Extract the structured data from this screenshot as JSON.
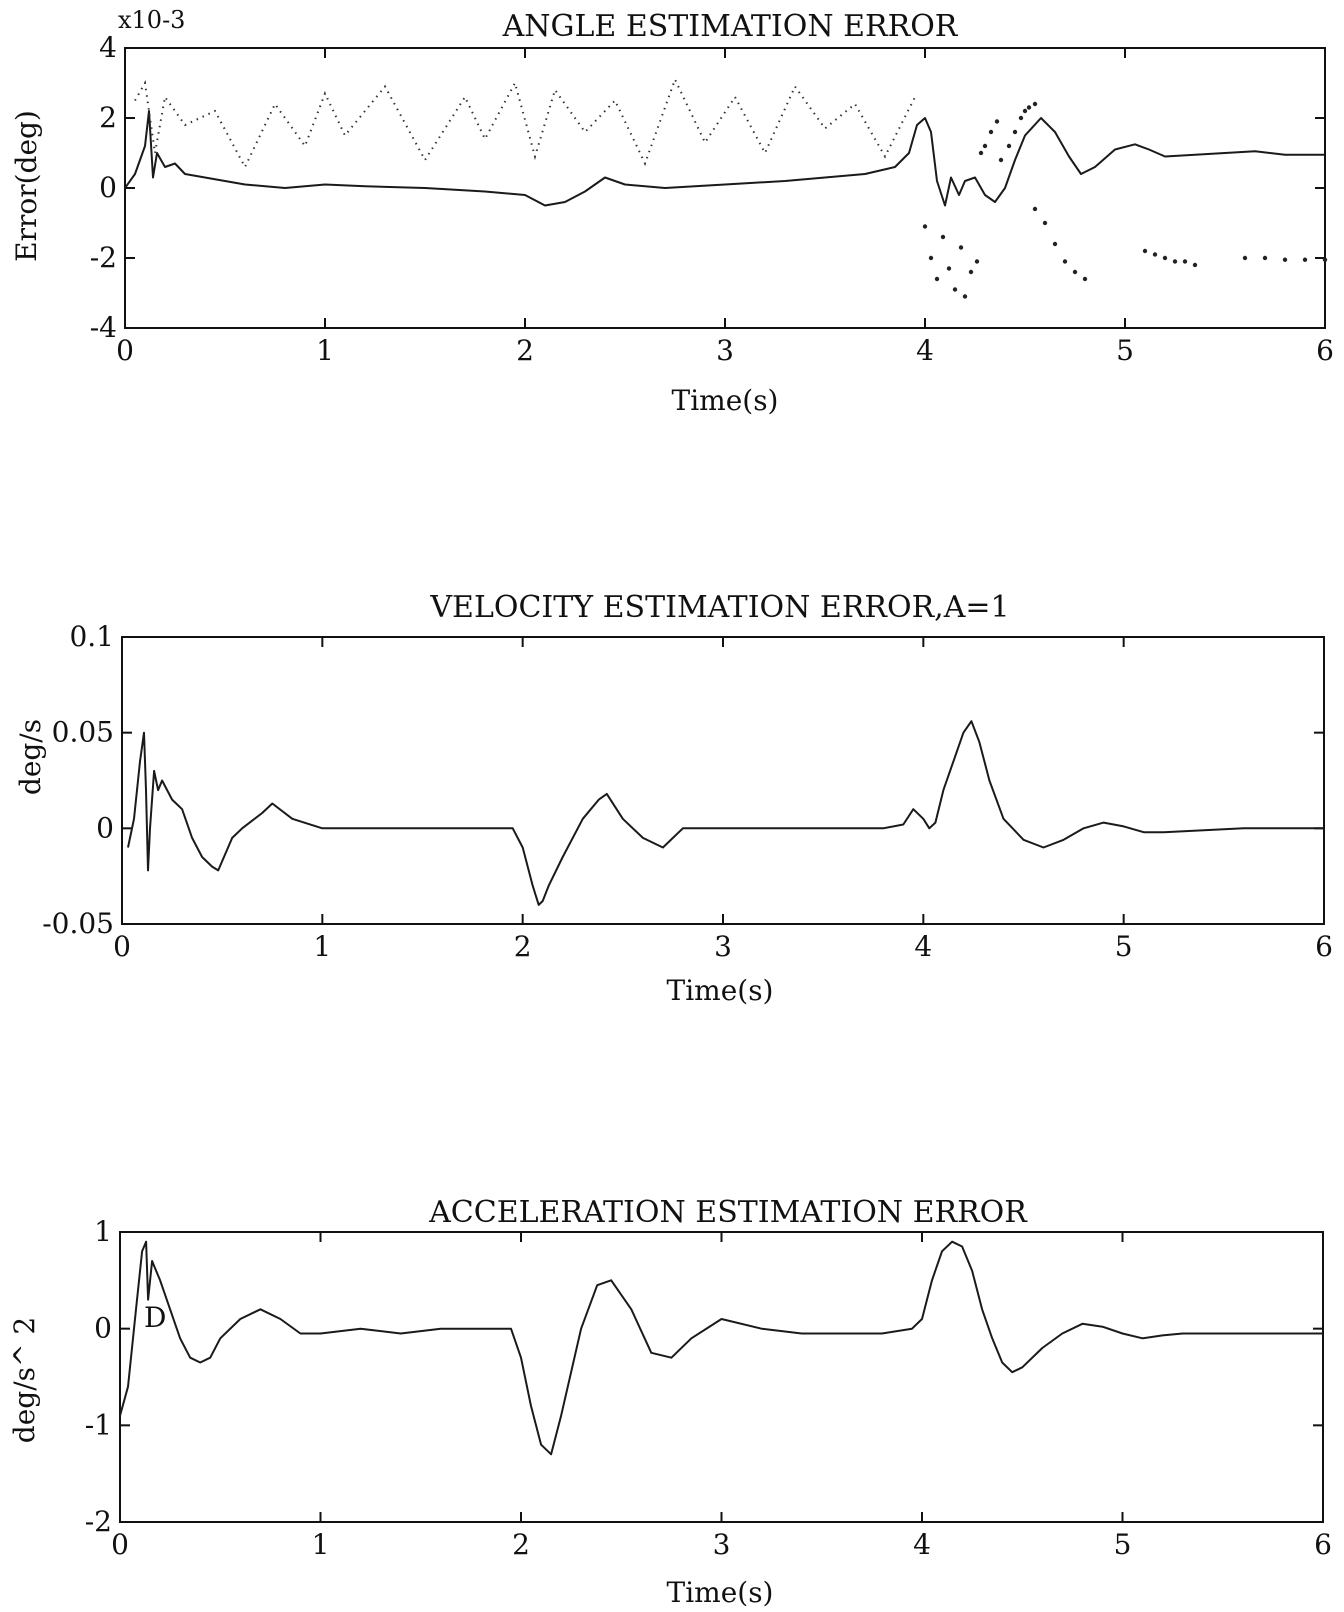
{
  "chart_data": [
    {
      "type": "line",
      "title": "ANGLE ESTIMATION ERROR",
      "xlabel": "Time(s)",
      "ylabel": "Error(deg)",
      "y_multiplier": "x10-3",
      "xlim": [
        0,
        6
      ],
      "ylim": [
        -4,
        4
      ],
      "xticks": [
        0,
        1,
        2,
        3,
        4,
        5,
        6
      ],
      "yticks": [
        -4,
        -2,
        0,
        2,
        4
      ],
      "grid": false,
      "series": [
        {
          "style": "solid",
          "x": [
            0,
            0.05,
            0.1,
            0.12,
            0.14,
            0.16,
            0.2,
            0.25,
            0.3,
            0.4,
            0.5,
            0.6,
            0.8,
            1.0,
            1.2,
            1.5,
            1.8,
            2.0,
            2.1,
            2.2,
            2.3,
            2.4,
            2.5,
            2.7,
            3.0,
            3.3,
            3.5,
            3.7,
            3.85,
            3.92,
            3.96,
            4.0,
            4.03,
            4.06,
            4.1,
            4.13,
            4.17,
            4.2,
            4.25,
            4.3,
            4.35,
            4.4,
            4.45,
            4.5,
            4.58,
            4.65,
            4.72,
            4.78,
            4.85,
            4.95,
            5.05,
            5.12,
            5.2,
            5.35,
            5.5,
            5.65,
            5.8,
            6.0
          ],
          "y": [
            0,
            0.4,
            1.2,
            2.2,
            0.3,
            1.0,
            0.6,
            0.7,
            0.4,
            0.3,
            0.2,
            0.1,
            0.0,
            0.1,
            0.05,
            0.0,
            -0.1,
            -0.2,
            -0.5,
            -0.4,
            -0.1,
            0.3,
            0.1,
            0.0,
            0.1,
            0.2,
            0.3,
            0.4,
            0.6,
            1.0,
            1.8,
            2.0,
            1.6,
            0.2,
            -0.5,
            0.3,
            -0.2,
            0.2,
            0.3,
            -0.2,
            -0.4,
            0.0,
            0.8,
            1.5,
            2.0,
            1.6,
            0.9,
            0.4,
            0.6,
            1.1,
            1.25,
            1.1,
            0.9,
            0.95,
            1.0,
            1.05,
            0.95,
            0.95
          ]
        },
        {
          "style": "dotted",
          "x": [
            0.05,
            0.1,
            0.15,
            0.2,
            0.3,
            0.45,
            0.6,
            0.75,
            0.9,
            1.0,
            1.1,
            1.3,
            1.5,
            1.7,
            1.8,
            1.95,
            2.05,
            2.15,
            2.3,
            2.45,
            2.6,
            2.75,
            2.9,
            3.05,
            3.2,
            3.35,
            3.5,
            3.65,
            3.8,
            3.95
          ],
          "y": [
            2.5,
            3.0,
            1.0,
            2.6,
            1.8,
            2.2,
            0.6,
            2.4,
            1.2,
            2.7,
            1.5,
            2.9,
            0.8,
            2.6,
            1.4,
            3.0,
            0.9,
            2.8,
            1.6,
            2.5,
            0.7,
            3.1,
            1.3,
            2.6,
            1.0,
            2.9,
            1.7,
            2.4,
            0.9,
            2.6
          ]
        },
        {
          "style": "dots",
          "x": [
            4.28,
            4.3,
            4.33,
            4.36,
            4.38,
            4.42,
            4.45,
            4.48,
            4.5,
            4.52,
            4.55
          ],
          "y": [
            1.0,
            1.2,
            1.6,
            1.9,
            0.8,
            1.2,
            1.6,
            2.0,
            2.2,
            2.3,
            2.4
          ]
        },
        {
          "style": "dots",
          "x": [
            4.0,
            4.03,
            4.06,
            4.09,
            4.12,
            4.15,
            4.18,
            4.2,
            4.23,
            4.26
          ],
          "y": [
            -1.1,
            -2.0,
            -2.6,
            -1.4,
            -2.3,
            -2.9,
            -1.7,
            -3.1,
            -2.4,
            -2.1
          ]
        },
        {
          "style": "dots",
          "x": [
            4.55,
            4.6,
            4.65,
            4.7,
            4.75,
            4.8
          ],
          "y": [
            -0.6,
            -1.0,
            -1.6,
            -2.1,
            -2.4,
            -2.6
          ]
        },
        {
          "style": "dots",
          "x": [
            5.1,
            5.15,
            5.2,
            5.25,
            5.3,
            5.35
          ],
          "y": [
            -1.8,
            -1.9,
            -2.0,
            -2.1,
            -2.1,
            -2.2
          ]
        },
        {
          "style": "dots",
          "x": [
            5.6,
            5.7,
            5.8,
            5.9,
            6.0
          ],
          "y": [
            -2.0,
            -2.0,
            -2.05,
            -2.05,
            -2.05
          ]
        }
      ]
    },
    {
      "type": "line",
      "title": "VELOCITY ESTIMATION ERROR,A=1",
      "xlabel": "Time(s)",
      "ylabel": "deg/s",
      "xlim": [
        0,
        6
      ],
      "ylim": [
        -0.05,
        0.1
      ],
      "xticks": [
        0,
        1,
        2,
        3,
        4,
        5,
        6
      ],
      "xtick_labels": [
        "0",
        "1",
        "2",
        "3",
        "4",
        "5",
        "6"
      ],
      "yticks": [
        -0.05,
        0,
        0.05,
        0.1
      ],
      "ytick_labels": [
        "-0.05",
        "0",
        "0.05",
        "0.1"
      ],
      "grid": false,
      "series": [
        {
          "style": "solid",
          "x": [
            0.03,
            0.06,
            0.09,
            0.11,
            0.12,
            0.13,
            0.14,
            0.16,
            0.18,
            0.2,
            0.25,
            0.3,
            0.35,
            0.4,
            0.45,
            0.48,
            0.55,
            0.6,
            0.7,
            0.75,
            0.85,
            1.0,
            1.2,
            1.4,
            1.6,
            1.8,
            1.95,
            2.0,
            2.05,
            2.08,
            2.1,
            2.13,
            2.2,
            2.3,
            2.38,
            2.42,
            2.5,
            2.6,
            2.7,
            2.8,
            3.0,
            3.2,
            3.4,
            3.6,
            3.8,
            3.9,
            3.95,
            4.0,
            4.03,
            4.06,
            4.1,
            4.15,
            4.2,
            4.24,
            4.28,
            4.33,
            4.4,
            4.5,
            4.6,
            4.7,
            4.8,
            4.9,
            5.0,
            5.1,
            5.2,
            5.4,
            5.6,
            5.8,
            6.0
          ],
          "y": [
            -0.01,
            0.005,
            0.035,
            0.05,
            0.02,
            -0.022,
            0.0,
            0.03,
            0.02,
            0.025,
            0.015,
            0.01,
            -0.005,
            -0.015,
            -0.02,
            -0.022,
            -0.005,
            0.0,
            0.008,
            0.013,
            0.005,
            0.0,
            0.0,
            0.0,
            0.0,
            0.0,
            0.0,
            -0.01,
            -0.03,
            -0.04,
            -0.038,
            -0.03,
            -0.015,
            0.005,
            0.015,
            0.018,
            0.005,
            -0.005,
            -0.01,
            0.0,
            0.0,
            0.0,
            0.0,
            0.0,
            0.0,
            0.002,
            0.01,
            0.005,
            0.0,
            0.003,
            0.02,
            0.035,
            0.05,
            0.056,
            0.045,
            0.025,
            0.005,
            -0.006,
            -0.01,
            -0.006,
            0.0,
            0.003,
            0.001,
            -0.002,
            -0.002,
            -0.001,
            0.0,
            0.0,
            0.0
          ]
        }
      ]
    },
    {
      "type": "line",
      "title": "ACCELERATION ESTIMATION ERROR",
      "xlabel": "Time(s)",
      "ylabel": "deg/s^ 2",
      "annotation": "D",
      "xlim": [
        0,
        6
      ],
      "ylim": [
        -2,
        1
      ],
      "xticks": [
        0,
        1,
        2,
        3,
        4,
        5,
        6
      ],
      "yticks": [
        -2,
        -1,
        0,
        1
      ],
      "grid": false,
      "series": [
        {
          "style": "solid",
          "x": [
            0,
            0.04,
            0.08,
            0.11,
            0.13,
            0.14,
            0.16,
            0.18,
            0.2,
            0.25,
            0.3,
            0.35,
            0.4,
            0.45,
            0.5,
            0.6,
            0.7,
            0.8,
            0.9,
            1.0,
            1.2,
            1.4,
            1.6,
            1.8,
            1.95,
            2.0,
            2.05,
            2.1,
            2.15,
            2.2,
            2.3,
            2.38,
            2.45,
            2.55,
            2.65,
            2.75,
            2.85,
            3.0,
            3.2,
            3.4,
            3.6,
            3.8,
            3.95,
            4.0,
            4.05,
            4.1,
            4.15,
            4.2,
            4.25,
            4.3,
            4.35,
            4.4,
            4.45,
            4.5,
            4.6,
            4.7,
            4.8,
            4.9,
            5.0,
            5.1,
            5.2,
            5.3,
            5.5,
            5.7,
            6.0
          ],
          "y": [
            -0.9,
            -0.6,
            0.2,
            0.8,
            0.9,
            0.3,
            0.7,
            0.6,
            0.5,
            0.2,
            -0.1,
            -0.3,
            -0.35,
            -0.3,
            -0.1,
            0.1,
            0.2,
            0.1,
            -0.05,
            -0.05,
            0.0,
            -0.05,
            0.0,
            0.0,
            0.0,
            -0.3,
            -0.8,
            -1.2,
            -1.3,
            -0.9,
            0.0,
            0.45,
            0.5,
            0.2,
            -0.25,
            -0.3,
            -0.1,
            0.1,
            0.0,
            -0.05,
            -0.05,
            -0.05,
            0.0,
            0.1,
            0.5,
            0.8,
            0.9,
            0.85,
            0.6,
            0.2,
            -0.1,
            -0.35,
            -0.45,
            -0.4,
            -0.2,
            -0.05,
            0.05,
            0.02,
            -0.05,
            -0.1,
            -0.07,
            -0.05,
            -0.05,
            -0.05,
            -0.05
          ]
        }
      ]
    }
  ]
}
